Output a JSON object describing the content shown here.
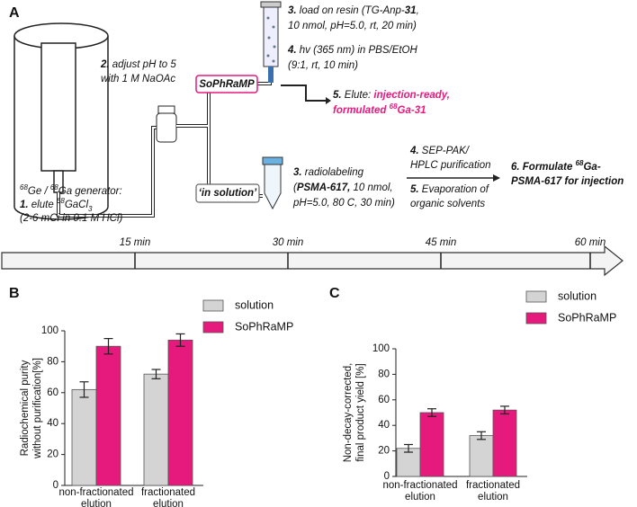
{
  "diagram": {
    "label": "A",
    "step2": [
      [
        "2.",
        " adjust pH to 5"
      ],
      [
        "with 1 M NaOAc"
      ]
    ],
    "sophramp": "SoPhRaMP",
    "step3a": [
      [
        "3.",
        " load on resin (TG-Anp-",
        "31",
        ","
      ],
      [
        "10 nmol, pH=5.0, rt, 20 min)"
      ]
    ],
    "step4a": [
      [
        "4.",
        " hv (365 nm) in PBS/EtOH"
      ],
      [
        "(9:1, rt, 10 min)"
      ]
    ],
    "step5a": [
      [
        "5.",
        " Elute: ",
        "injection-ready,"
      ],
      [
        "formulated ",
        "68",
        "Ga-31"
      ]
    ],
    "in_solution": "‘in solution’",
    "step3b": [
      [
        "3.",
        " radiolabeling"
      ],
      [
        "(",
        "PSMA-617,",
        " 10 nmol,"
      ],
      [
        "pH=5.0, 80 C, 30 min)"
      ]
    ],
    "step4b": [
      [
        "4.",
        " SEP-PAK/"
      ],
      [
        "HPLC purification"
      ]
    ],
    "step5b": [
      [
        "5.",
        " Evaporation of"
      ],
      [
        "organic solvents"
      ]
    ],
    "step6": [
      [
        "6. Formulate ",
        "68",
        "Ga-"
      ],
      [
        "PSMA-617 for injection"
      ]
    ],
    "generator": [
      [
        "68",
        "Ge / ",
        "68",
        "Ga generator:"
      ],
      [
        "1.",
        " elute ",
        "68",
        "GaCl",
        "3"
      ],
      [
        "(2-6 mCi in 0.1 M HCl)"
      ]
    ],
    "timeline": [
      "15 min",
      "30 min",
      "45 min",
      "60 min"
    ]
  },
  "chart_data": [
    {
      "type": "bar",
      "label": "B",
      "ylabel": [
        "Radiochemical purity",
        "without purification[%]"
      ],
      "categories": [
        "non-fractionated elution",
        "fractionated elution"
      ],
      "series": [
        {
          "name": "solution",
          "color": "#d4d4d4",
          "values": [
            62,
            72
          ],
          "errors": [
            5,
            3
          ]
        },
        {
          "name": "SoPhRaMP",
          "color": "#e6197d",
          "values": [
            90,
            94
          ],
          "errors": [
            5,
            4
          ]
        }
      ],
      "ylim": [
        0,
        100
      ],
      "yticks": [
        0,
        20,
        40,
        60,
        80,
        100
      ]
    },
    {
      "type": "bar",
      "label": "C",
      "ylabel": [
        "Non-decay-corrected,",
        "final product yield [%]"
      ],
      "categories": [
        "non-fractionated elution",
        "fractionated elution"
      ],
      "series": [
        {
          "name": "solution",
          "color": "#d4d4d4",
          "values": [
            22,
            32
          ],
          "errors": [
            3,
            3
          ]
        },
        {
          "name": "SoPhRaMP",
          "color": "#e6197d",
          "values": [
            50,
            52
          ],
          "errors": [
            3,
            3
          ]
        }
      ],
      "ylim": [
        0,
        100
      ],
      "yticks": [
        0,
        20,
        40,
        60,
        80,
        100
      ]
    }
  ]
}
